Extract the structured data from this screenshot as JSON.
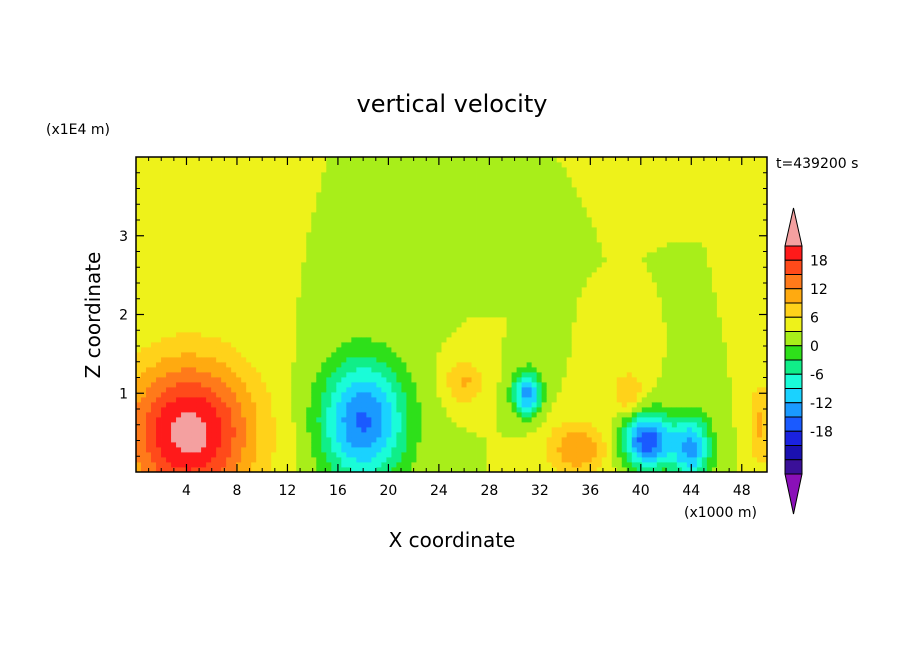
{
  "chart_data": {
    "type": "heatmap",
    "title": "vertical velocity",
    "time_label": "t=439200 s",
    "xlabel": "X coordinate",
    "ylabel": "Z coordinate",
    "x_units": "(x1000 m)",
    "z_units": "(x1E4 m)",
    "x_range": [
      0,
      50
    ],
    "z_range": [
      0,
      4
    ],
    "x_ticks": [
      "4",
      "8",
      "12",
      "16",
      "20",
      "24",
      "28",
      "32",
      "36",
      "40",
      "44",
      "48"
    ],
    "z_ticks": [
      "1",
      "2",
      "3"
    ],
    "colorbar": {
      "labels": [
        "18",
        "12",
        "6",
        "0",
        "-6",
        "-12",
        "-18"
      ],
      "levels": [
        21,
        18,
        15,
        12,
        9,
        6,
        3,
        0,
        -3,
        -6,
        -9,
        -12,
        -15,
        -18,
        -21
      ],
      "colors": [
        "#f4a0a0",
        "#ff1a1a",
        "#ff4a1a",
        "#ff7a1a",
        "#ffaa10",
        "#ffd21a",
        "#eef21a",
        "#a8ee1a",
        "#2ee01a",
        "#10ee88",
        "#1afcd8",
        "#1ad2ff",
        "#1a9aff",
        "#1a5aff",
        "#1a22e0",
        "#1a10b0",
        "#3a1098",
        "#8a10b8"
      ]
    },
    "field": {
      "background": 3,
      "features": [
        {
          "type": "updraft",
          "x": 4.2,
          "z": 0.5,
          "peak": 21,
          "sx": 3.6,
          "sz": 0.65
        },
        {
          "type": "downdraft",
          "x": 18,
          "z": 0.65,
          "peak": -17,
          "sx": 2.4,
          "sz": 0.55
        },
        {
          "type": "downdraft",
          "x": 31,
          "z": 1.0,
          "peak": -15,
          "sx": 0.8,
          "sz": 0.2
        },
        {
          "type": "downdraft",
          "x": 40.5,
          "z": 0.4,
          "peak": -19,
          "sx": 1.4,
          "sz": 0.25
        },
        {
          "type": "downdraft",
          "x": 44,
          "z": 0.3,
          "peak": -14,
          "sx": 1.1,
          "sz": 0.3
        },
        {
          "type": "updraft",
          "x": 26,
          "z": 1.15,
          "peak": 8,
          "sx": 1.1,
          "sz": 0.2
        },
        {
          "type": "updraft",
          "x": 35,
          "z": 0.3,
          "peak": 10,
          "sx": 1.8,
          "sz": 0.25
        },
        {
          "type": "updraft",
          "x": 39,
          "z": 1.0,
          "peak": 8,
          "sx": 0.9,
          "sz": 0.2
        },
        {
          "type": "updraft",
          "x": 49.5,
          "z": 0.6,
          "peak": 8,
          "sx": 0.7,
          "sz": 0.4
        }
      ]
    }
  }
}
